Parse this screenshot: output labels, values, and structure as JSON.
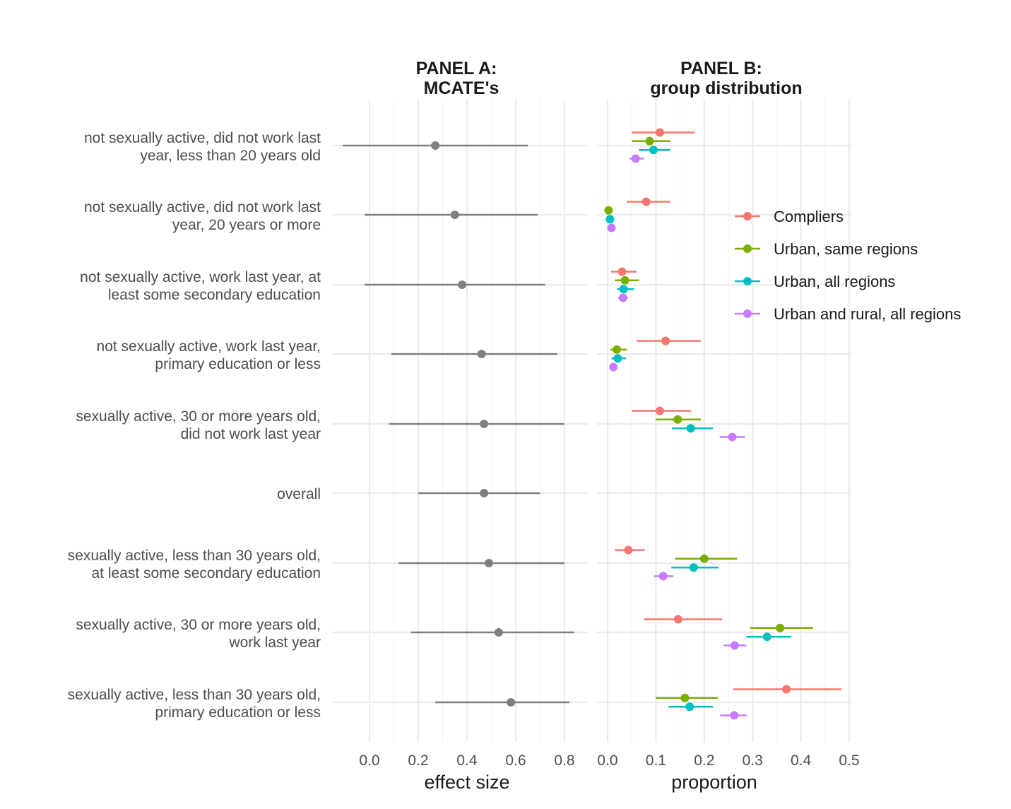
{
  "chart_data": [
    {
      "type": "scatter",
      "variant": "point-range (dot-and-whisker)",
      "title": "PANEL A:\nMCATE's",
      "title_lines": [
        "PANEL A:",
        "MCATE's"
      ],
      "xlabel": "effect size",
      "ylabel": "",
      "xlim": [
        -0.11,
        0.9
      ],
      "xticks": [
        0.0,
        0.2,
        0.4,
        0.6,
        0.8
      ],
      "xtick_labels": [
        "0.0",
        "0.2",
        "0.4",
        "0.6",
        "0.8"
      ],
      "grid": true,
      "color": "#7f7f7f",
      "groups": [
        {
          "label_lines": [
            "not sexually active, did not work last",
            "year, less than 20 years old"
          ],
          "estimate": 0.27,
          "lower": -0.11,
          "upper": 0.65
        },
        {
          "label_lines": [
            "not sexually active, did not work last",
            "year, 20 years or more"
          ],
          "estimate": 0.35,
          "lower": -0.02,
          "upper": 0.69
        },
        {
          "label_lines": [
            "not sexually active, work last year, at",
            "least some secondary education"
          ],
          "estimate": 0.38,
          "lower": -0.02,
          "upper": 0.72
        },
        {
          "label_lines": [
            "not sexually active, work last year,",
            "primary education or less"
          ],
          "estimate": 0.46,
          "lower": 0.09,
          "upper": 0.77
        },
        {
          "label_lines": [
            "sexually active, 30 or more years old,",
            "did not work last year"
          ],
          "estimate": 0.47,
          "lower": 0.08,
          "upper": 0.8
        },
        {
          "label_lines": [
            "overall"
          ],
          "estimate": 0.47,
          "lower": 0.2,
          "upper": 0.7
        },
        {
          "label_lines": [
            "sexually active, less than 30 years old,",
            "at least some secondary education"
          ],
          "estimate": 0.49,
          "lower": 0.12,
          "upper": 0.8
        },
        {
          "label_lines": [
            "sexually active, 30 or more years old,",
            "work last year"
          ],
          "estimate": 0.53,
          "lower": 0.17,
          "upper": 0.84
        },
        {
          "label_lines": [
            "sexually active, less than 30 years old,",
            "primary education or less"
          ],
          "estimate": 0.58,
          "lower": 0.27,
          "upper": 0.82
        }
      ]
    },
    {
      "type": "scatter",
      "variant": "point-range (dot-and-whisker), dodged by series",
      "title": "PANEL B:\ngroup distribution",
      "title_lines": [
        "PANEL B:",
        "group distribution"
      ],
      "xlabel": "proportion",
      "ylabel": "",
      "xlim": [
        0.0,
        0.5
      ],
      "xticks": [
        0.0,
        0.1,
        0.2,
        0.3,
        0.4,
        0.5
      ],
      "xtick_labels": [
        "0.0",
        "0.1",
        "0.2",
        "0.3",
        "0.4",
        "0.5"
      ],
      "grid": true,
      "legend_position": "right",
      "series": [
        {
          "name": "Compliers",
          "color": "#F8766D",
          "values": [
            {
              "estimate": 0.108,
              "lower": 0.05,
              "upper": 0.18
            },
            {
              "estimate": 0.08,
              "lower": 0.04,
              "upper": 0.13
            },
            {
              "estimate": 0.03,
              "lower": 0.007,
              "upper": 0.06
            },
            {
              "estimate": 0.12,
              "lower": 0.06,
              "upper": 0.193
            },
            {
              "estimate": 0.108,
              "lower": 0.05,
              "upper": 0.173
            },
            null,
            {
              "estimate": 0.043,
              "lower": 0.015,
              "upper": 0.077
            },
            {
              "estimate": 0.146,
              "lower": 0.075,
              "upper": 0.237
            },
            {
              "estimate": 0.37,
              "lower": 0.26,
              "upper": 0.484
            }
          ]
        },
        {
          "name": "Urban, same regions",
          "color": "#7CAE00",
          "values": [
            {
              "estimate": 0.087,
              "lower": 0.05,
              "upper": 0.13
            },
            {
              "estimate": 0.002,
              "lower": 0.0,
              "upper": 0.005
            },
            {
              "estimate": 0.036,
              "lower": 0.015,
              "upper": 0.065
            },
            {
              "estimate": 0.019,
              "lower": 0.006,
              "upper": 0.04
            },
            {
              "estimate": 0.145,
              "lower": 0.1,
              "upper": 0.193
            },
            null,
            {
              "estimate": 0.2,
              "lower": 0.14,
              "upper": 0.268
            },
            {
              "estimate": 0.357,
              "lower": 0.295,
              "upper": 0.425
            },
            {
              "estimate": 0.16,
              "lower": 0.1,
              "upper": 0.228
            }
          ]
        },
        {
          "name": "Urban, all regions",
          "color": "#00BFC4",
          "values": [
            {
              "estimate": 0.095,
              "lower": 0.065,
              "upper": 0.13
            },
            {
              "estimate": 0.005,
              "lower": 0.001,
              "upper": 0.01
            },
            {
              "estimate": 0.033,
              "lower": 0.02,
              "upper": 0.055
            },
            {
              "estimate": 0.021,
              "lower": 0.008,
              "upper": 0.038
            },
            {
              "estimate": 0.172,
              "lower": 0.133,
              "upper": 0.218
            },
            null,
            {
              "estimate": 0.178,
              "lower": 0.132,
              "upper": 0.23
            },
            {
              "estimate": 0.33,
              "lower": 0.287,
              "upper": 0.38
            },
            {
              "estimate": 0.17,
              "lower": 0.126,
              "upper": 0.218
            }
          ]
        },
        {
          "name": "Urban and rural, all regions",
          "color": "#C77CFF",
          "values": [
            {
              "estimate": 0.058,
              "lower": 0.045,
              "upper": 0.075
            },
            {
              "estimate": 0.008,
              "lower": 0.004,
              "upper": 0.012
            },
            {
              "estimate": 0.032,
              "lower": 0.022,
              "upper": 0.042
            },
            {
              "estimate": 0.012,
              "lower": 0.006,
              "upper": 0.018
            },
            {
              "estimate": 0.258,
              "lower": 0.232,
              "upper": 0.284
            },
            null,
            {
              "estimate": 0.115,
              "lower": 0.096,
              "upper": 0.136
            },
            {
              "estimate": 0.263,
              "lower": 0.24,
              "upper": 0.287
            },
            {
              "estimate": 0.262,
              "lower": 0.233,
              "upper": 0.288
            }
          ]
        }
      ]
    }
  ]
}
